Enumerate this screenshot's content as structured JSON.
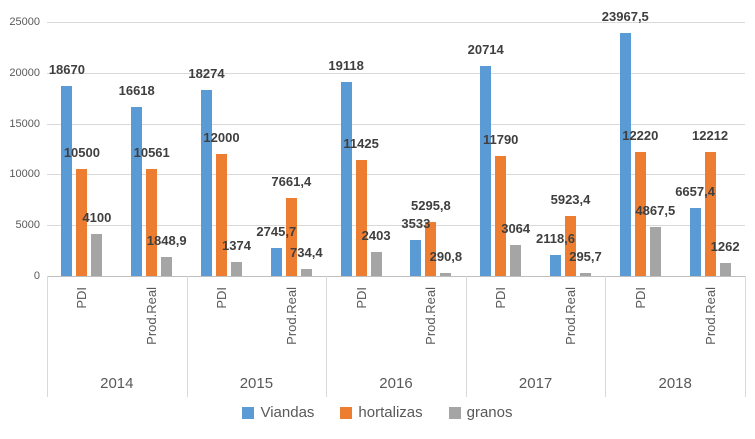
{
  "chart_data": {
    "type": "bar",
    "title": "",
    "y_axis": {
      "min": 0,
      "max": 25000,
      "step": 5000,
      "tick_labels": [
        "0",
        "5000",
        "10000",
        "15000",
        "20000",
        "25000"
      ]
    },
    "x_axis": {
      "group_labels": [
        "2014",
        "2015",
        "2016",
        "2017",
        "2018"
      ],
      "sub_labels": [
        "PDI",
        "Prod.Real"
      ]
    },
    "series": [
      {
        "name": "Viandas",
        "color": "#5B9BD5",
        "values": [
          18670,
          16618,
          18274,
          2745.7,
          19118,
          3533,
          20714,
          2118.6,
          23967.5,
          6657.4
        ],
        "labels": [
          "18670",
          "16618",
          "18274",
          "2745,7",
          "19118",
          "3533",
          "20714",
          "2118,6",
          "23967,5",
          "6657,4"
        ]
      },
      {
        "name": "hortalizas",
        "color": "#ED7D31",
        "values": [
          10500,
          10561,
          12000,
          7661.4,
          11425,
          5295.8,
          11790,
          5923.4,
          12220,
          12212
        ],
        "labels": [
          "10500",
          "10561",
          "12000",
          "7661,4",
          "11425",
          "5295,8",
          "11790",
          "5923,4",
          "12220",
          "12212"
        ]
      },
      {
        "name": "granos",
        "color": "#A5A5A5",
        "values": [
          4100,
          1848.9,
          1374,
          734.4,
          2403,
          290.8,
          3064,
          295.7,
          4867.5,
          1262
        ],
        "labels": [
          "4100",
          "1848,9",
          "1374",
          "734,4",
          "2403",
          "290,8",
          "3064",
          "295,7",
          "4867,5",
          "1262"
        ]
      }
    ],
    "legend": {
      "position": "bottom",
      "entries": [
        "Viandas",
        "hortalizas",
        "granos"
      ]
    },
    "grid": true,
    "colors": {
      "grid": "#D9D9D9",
      "axis_line": "#BFBFBF",
      "tick_text": "#595959",
      "data_label_text": "#3F3F3F"
    }
  }
}
